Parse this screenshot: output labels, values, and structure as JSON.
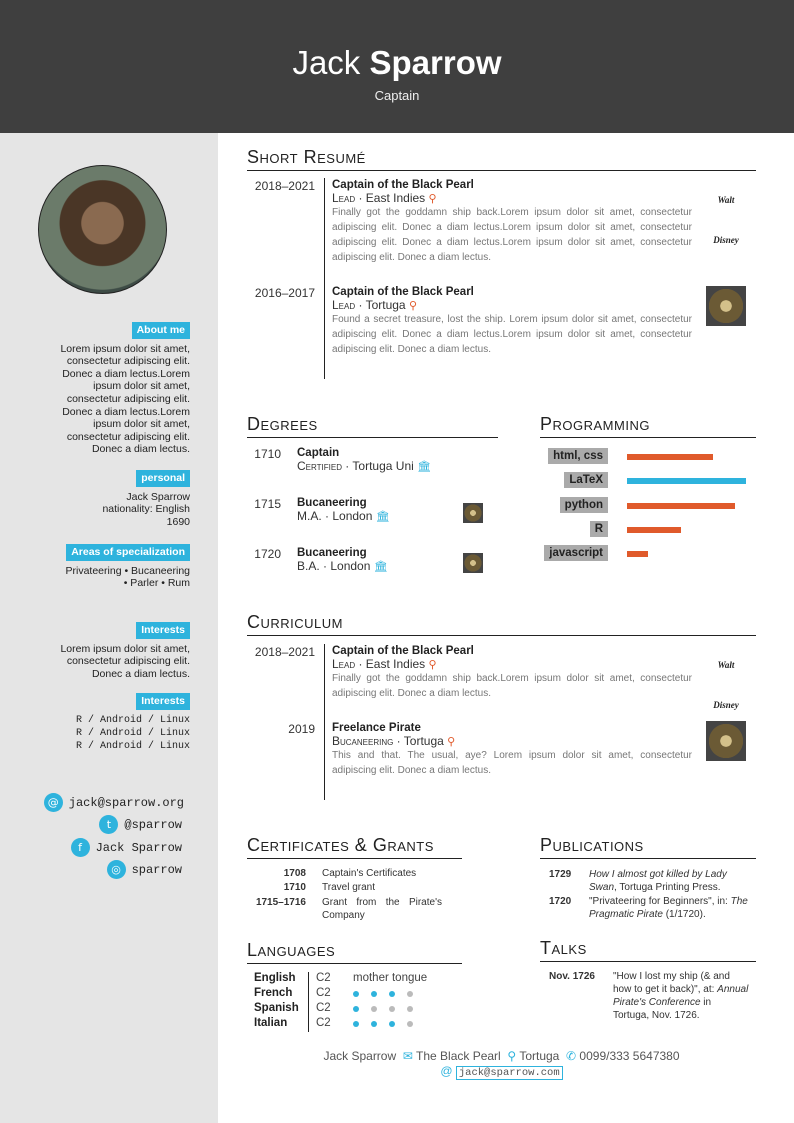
{
  "header": {
    "first_name": "Jack",
    "last_name": "Sparrow",
    "position": "Captain"
  },
  "sidebar": {
    "about": {
      "label": "About me",
      "text": "Lorem ipsum dolor sit amet, consectetur adipiscing elit. Donec a diam lectus.Lorem ipsum dolor sit amet, consectetur adipiscing elit. Donec a diam lectus.Lorem ipsum dolor sit amet, consectetur adipiscing elit. Donec a diam lectus."
    },
    "personal": {
      "label": "personal",
      "lines": [
        "Jack Sparrow",
        "nationality: English",
        "1690"
      ]
    },
    "areas": {
      "label": "Areas of specialization",
      "line1": "Privateering • Bucaneering",
      "line2": "• Parler • Rum"
    },
    "interests1": {
      "label": "Interests",
      "text": "Lorem ipsum dolor sit amet, consectetur adipiscing elit. Donec a diam lectus."
    },
    "interests2": {
      "label": "Interests",
      "lines": [
        "R / Android / Linux",
        "R / Android / Linux",
        "R / Android / Linux"
      ]
    },
    "contacts": [
      {
        "icon": "at-icon",
        "glyph": "@",
        "text": "jack@sparrow.org"
      },
      {
        "icon": "twitter-icon",
        "glyph": "t",
        "text": "@sparrow"
      },
      {
        "icon": "facebook-icon",
        "glyph": "f",
        "text": "Jack Sparrow"
      },
      {
        "icon": "github-icon",
        "glyph": "◎",
        "text": "sparrow"
      }
    ]
  },
  "short_resume": {
    "title": "Short Resumé",
    "entries": [
      {
        "date": "2018–2021",
        "title": "Captain of the Black Pearl",
        "role": "Lead",
        "place": "East Indies",
        "desc": "Finally got the goddamn ship back.Lorem ipsum dolor sit amet, consectetur adipiscing elit. Donec a diam lectus.Lorem ipsum dolor sit amet, consectetur adipiscing elit. Donec a diam lectus.Lorem ipsum dolor sit amet, consectetur adipiscing elit. Donec a diam lectus.",
        "logo": "Walt Disney"
      },
      {
        "date": "2016–2017",
        "title": "Captain of the Black Pearl",
        "role": "Lead",
        "place": "Tortuga",
        "desc": "Found a secret treasure, lost the ship. Lorem ipsum dolor sit amet, consectetur adipiscing elit. Donec a diam lectus.Lorem ipsum dolor sit amet, consectetur adipiscing elit. Donec a diam lectus.",
        "logo": ""
      }
    ]
  },
  "degrees": {
    "title": "Degrees",
    "entries": [
      {
        "year": "1710",
        "title": "Captain",
        "degree": "Certified",
        "place": "Tortuga Uni"
      },
      {
        "year": "1715",
        "title": "Bucaneering",
        "degree": "M.A.",
        "place": "London"
      },
      {
        "year": "1720",
        "title": "Bucaneering",
        "degree": "B.A.",
        "place": "London"
      }
    ]
  },
  "programming": {
    "title": "Programming",
    "skills": [
      {
        "name": "html, css",
        "level": 0.72,
        "color": "#e05a2b"
      },
      {
        "name": "LaTeX",
        "level": 1.0,
        "color": "#2eb3dd"
      },
      {
        "name": "python",
        "level": 0.91,
        "color": "#e05a2b"
      },
      {
        "name": "R",
        "level": 0.45,
        "color": "#e05a2b"
      },
      {
        "name": "javascript",
        "level": 0.18,
        "color": "#e05a2b"
      }
    ]
  },
  "curriculum": {
    "title": "Curriculum",
    "entries": [
      {
        "date": "2018–2021",
        "title": "Captain of the Black Pearl",
        "role": "Lead",
        "place": "East Indies",
        "desc": "Finally got the goddamn ship back.Lorem ipsum dolor sit amet, consectetur adipiscing elit. Donec a diam lectus.",
        "logo": "Walt Disney"
      },
      {
        "date": "2019",
        "title": "Freelance Pirate",
        "role": "Bucaneering",
        "place": "Tortuga",
        "desc": "This and that. The usual, aye? Lorem ipsum dolor sit amet, consectetur adipiscing elit. Donec a diam lectus.",
        "logo": ""
      }
    ]
  },
  "certificates": {
    "title": "Certificates & Grants",
    "entries": [
      {
        "date": "1708",
        "text": "Captain's Certificates"
      },
      {
        "date": "1710",
        "text": "Travel grant"
      },
      {
        "date": "1715–1716",
        "text": "Grant from the Pirate's Company"
      }
    ]
  },
  "publications": {
    "title": "Publications",
    "entries": [
      {
        "year": "1729",
        "italic": "How I almost got killed by Lady Swan",
        "rest": ", Tortuga Printing Press."
      },
      {
        "year": "1720",
        "pre": "\"Privateering for Beginners\", in: ",
        "italic": "The Pragmatic Pirate",
        "rest": " (1/1720)."
      }
    ]
  },
  "languages": {
    "title": "Languages",
    "entries": [
      {
        "name": "English",
        "level": "C2",
        "note": "mother tongue",
        "dots": null
      },
      {
        "name": "French",
        "level": "C2",
        "dots": 3
      },
      {
        "name": "Spanish",
        "level": "C2",
        "dots": 1
      },
      {
        "name": "Italian",
        "level": "C2",
        "dots": 3
      }
    ]
  },
  "talks": {
    "title": "Talks",
    "entries": [
      {
        "date": "Nov. 1726",
        "pre": "\"How I lost my ship (& and how to get it back)\", at: ",
        "italic": "Annual Pirate's Conference",
        "rest": " in Tortuga, Nov. 1726."
      }
    ]
  },
  "footer": {
    "name": "Jack Sparrow",
    "address": "The Black Pearl",
    "city": "Tortuga",
    "phone": "0099/333 5647380",
    "email": "jack@sparrow.com"
  },
  "colors": {
    "accent": "#2eb3dd",
    "pin": "#e05a2b",
    "header_bg": "#3f3f3f",
    "sidebar_bg": "#e5e5e5"
  }
}
